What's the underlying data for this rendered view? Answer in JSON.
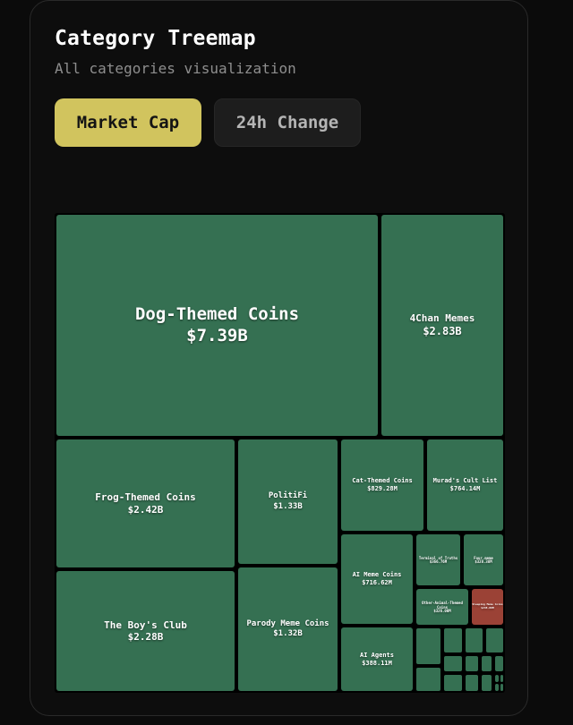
{
  "header": {
    "title": "Category Treemap",
    "subtitle": "All categories visualization"
  },
  "toggle": {
    "market_cap_label": "Market Cap",
    "change_label": "24h Change",
    "selected": "Market Cap"
  },
  "colors": {
    "accent": "#d1c45e",
    "positive": "#357052",
    "negative": "#9b4236",
    "background": "#0b0b0b"
  },
  "chart_data": {
    "type": "treemap",
    "metric": "Market Cap",
    "tiles": [
      {
        "name": "Dog-Themed Coins",
        "value": 7390000000,
        "label": "$7.39B",
        "change": "positive"
      },
      {
        "name": "4Chan Memes",
        "value": 2830000000,
        "label": "$2.83B",
        "change": "positive"
      },
      {
        "name": "Frog-Themed Coins",
        "value": 2420000000,
        "label": "$2.42B",
        "change": "positive"
      },
      {
        "name": "PolitiFi",
        "value": 1330000000,
        "label": "$1.33B",
        "change": "positive"
      },
      {
        "name": "Cat-Themed Coins",
        "value": 829280000,
        "label": "$829.28M",
        "change": "positive"
      },
      {
        "name": "Murad's Cult List",
        "value": 764140000,
        "label": "$764.14M",
        "change": "positive"
      },
      {
        "name": "The Boy's Club",
        "value": 2280000000,
        "label": "$2.28B",
        "change": "positive"
      },
      {
        "name": "Parody Meme Coins",
        "value": 1320000000,
        "label": "$1.32B",
        "change": "positive"
      },
      {
        "name": "AI Meme Coins",
        "value": 716620000,
        "label": "$716.62M",
        "change": "positive"
      },
      {
        "name": "Terminal of Truths",
        "value": 366760000,
        "label": "$366.76M",
        "change": "positive"
      },
      {
        "name": "Four.meme",
        "value": 328380000,
        "label": "$328.38M",
        "change": "positive"
      },
      {
        "name": "Other-Animal-Themed Coins",
        "value": 326000000,
        "label": "$326.00M",
        "change": "positive"
      },
      {
        "name": "Sleeping Meme Coins",
        "value": 248000000,
        "label": "$248.00M",
        "change": "negative"
      },
      {
        "name": "AI Agents",
        "value": 388110000,
        "label": "$388.11M",
        "change": "positive"
      }
    ]
  }
}
